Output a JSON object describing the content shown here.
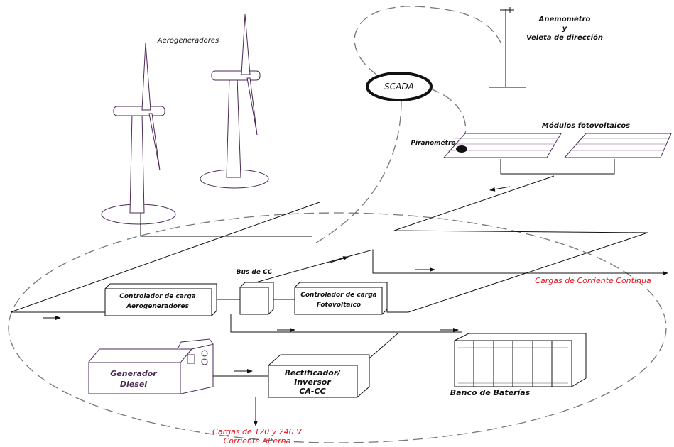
{
  "labels": {
    "wind": "Aerogeneradores",
    "anemometer": [
      "Anemométro",
      "y",
      "Veleta de dirección"
    ],
    "scada": "SCADA",
    "pv": "Módulos fotovoltaicos",
    "pyranometer": "Piranométro",
    "bus": "Bus de CC",
    "wind_controller": [
      "Controlador de carga",
      "Aerogeneradores"
    ],
    "pv_controller": [
      "Controlador de carga",
      "Fotovoltaico"
    ],
    "dc_loads": "Cargas de Corriente Continua",
    "diesel": [
      "Generador",
      "Diesel"
    ],
    "rectifier": [
      "Rectificador/",
      "Inversor",
      "CA-CC"
    ],
    "batteries": "Banco de Baterías",
    "ac_loads": [
      "Cargas de 120 y 240 V",
      "Corriente Alterna"
    ]
  }
}
